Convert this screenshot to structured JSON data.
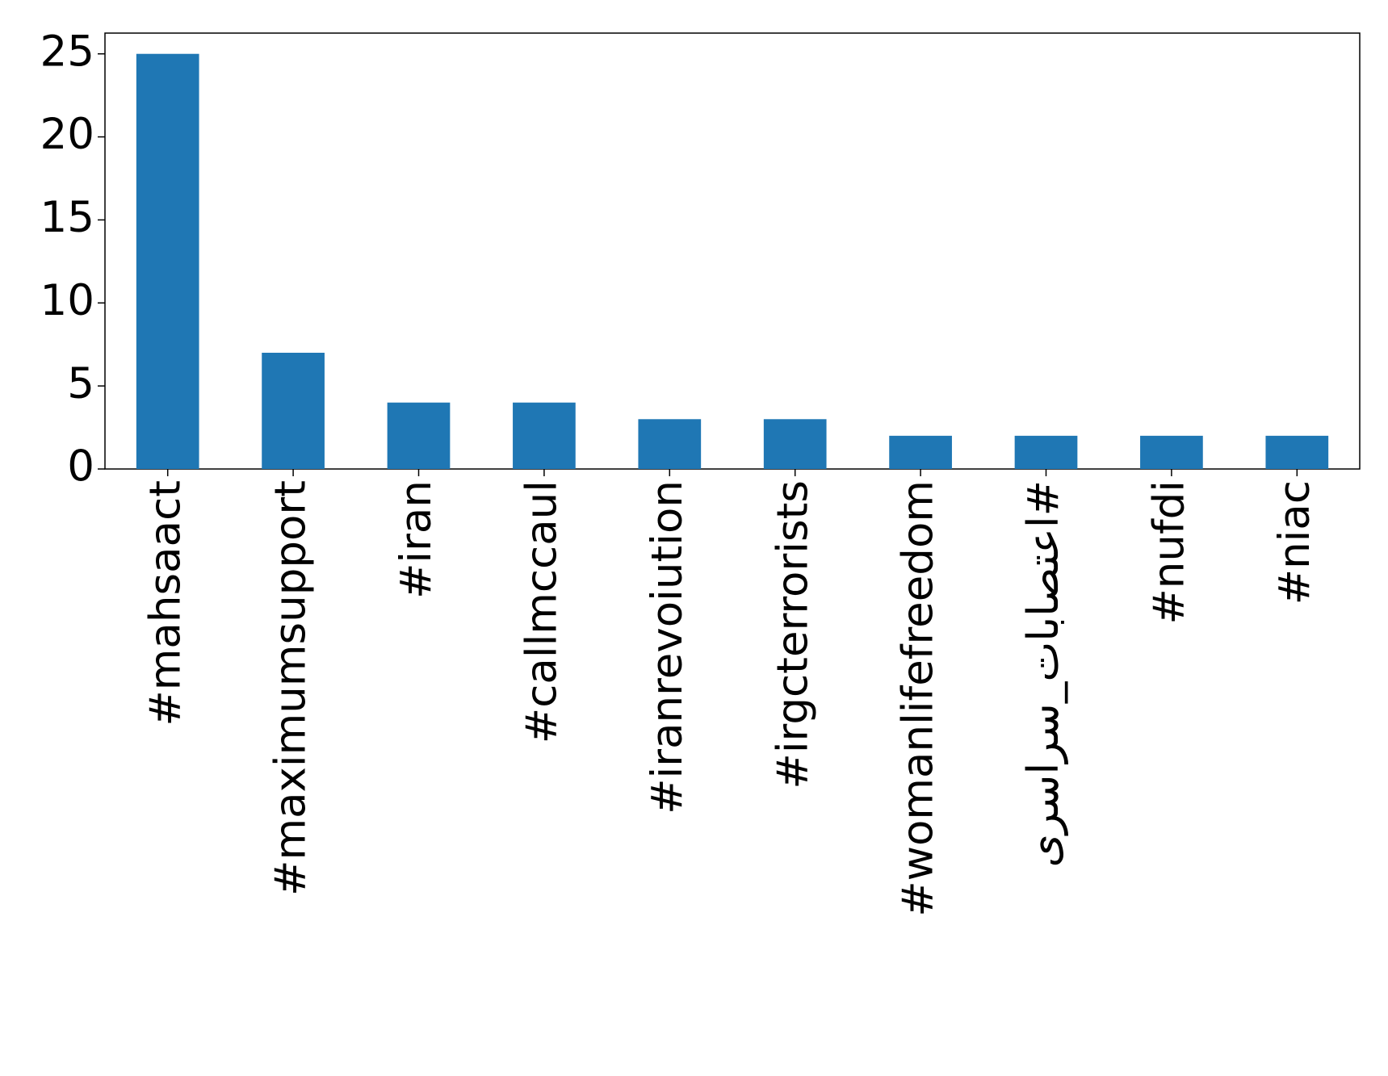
{
  "chart_data": {
    "type": "bar",
    "categories": [
      "#mahsaact",
      "#maximumsupport",
      "#iran",
      "#callmccaul",
      "#iranrevoiution",
      "#irgcterrorists",
      "#womanlifefreedom",
      "#اعتصابات_سراسری",
      "#nufdi",
      "#niac"
    ],
    "values": [
      25,
      7,
      4,
      4,
      3,
      3,
      2,
      2,
      2,
      2
    ],
    "color": "#1f77b4",
    "ylim": [
      0,
      26.25
    ],
    "yticks": [
      0,
      5,
      10,
      15,
      20,
      25
    ],
    "grid": false
  }
}
